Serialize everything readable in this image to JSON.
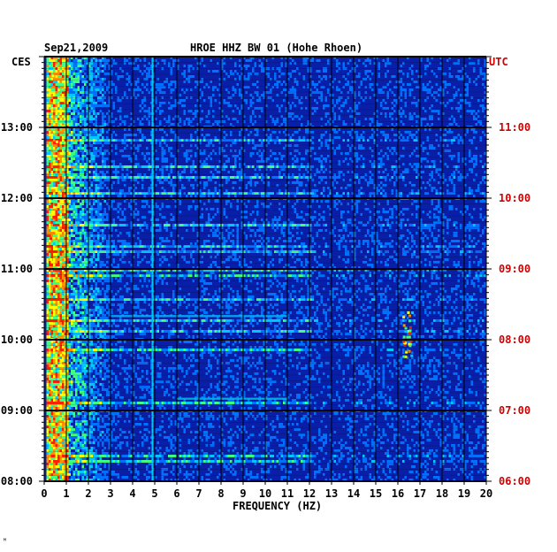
{
  "header": {
    "date": "Sep21,2009",
    "station_title": "HROE HHZ BW 01 (Hohe Rhoen)"
  },
  "axis_labels": {
    "left_zone": "CES",
    "right_zone": "UTC",
    "x_axis": "FREQUENCY (HZ)"
  },
  "corner_mark": "ᴹ",
  "colors": {
    "background": "#0a1fa8",
    "hour_line": "#000000",
    "right_time_text": "#d40000",
    "low": "#0a1fa8",
    "mid": "#00c8ff",
    "high": "#ffff00",
    "peak": "#ff2000"
  },
  "chart_data": {
    "type": "heatmap",
    "title": "HROE HHZ BW 01 (Hohe Rhoen)",
    "date": "Sep21,2009",
    "xlabel": "FREQUENCY (HZ)",
    "x_ticks": [
      "0",
      "1",
      "2",
      "3",
      "4",
      "5",
      "6",
      "7",
      "8",
      "9",
      "10",
      "11",
      "12",
      "13",
      "14",
      "15",
      "16",
      "17",
      "18",
      "19",
      "20"
    ],
    "xlim": [
      0,
      20
    ],
    "y_ticks_left": [
      "13:00",
      "12:00",
      "11:00",
      "10:00",
      "09:00",
      "08:00"
    ],
    "y_ticks_right": [
      "11:00",
      "10:00",
      "09:00",
      "08:00",
      "07:00",
      "06:00"
    ],
    "y_left_label": "CES",
    "y_right_label": "UTC",
    "time_range_local": [
      "08:00",
      "14:00"
    ],
    "grid": true,
    "features": [
      {
        "description": "strong broadband energy",
        "freq_range": [
          0.2,
          1.0
        ],
        "time_range_local": [
          "08:00",
          "14:00"
        ]
      },
      {
        "description": "persistent narrow line",
        "freq": 4.9,
        "time_range_local": [
          "08:00",
          "14:00"
        ]
      },
      {
        "description": "transient energy cluster",
        "freq_range": [
          16.2,
          16.7
        ],
        "time_range_local": [
          "09:45",
          "10:25"
        ]
      },
      {
        "description": "horizontal broadband streak",
        "freq_range": [
          3,
          11
        ],
        "time_local": "10:20"
      },
      {
        "description": "horizontal broadband streak",
        "freq_range": [
          6,
          11
        ],
        "time_local": "09:10"
      }
    ]
  }
}
